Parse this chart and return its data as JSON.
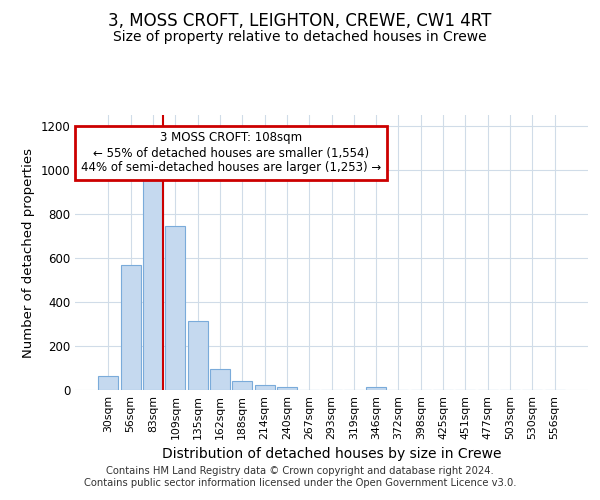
{
  "title": "3, MOSS CROFT, LEIGHTON, CREWE, CW1 4RT",
  "subtitle": "Size of property relative to detached houses in Crewe",
  "xlabel": "Distribution of detached houses by size in Crewe",
  "ylabel": "Number of detached properties",
  "categories": [
    "30sqm",
    "56sqm",
    "83sqm",
    "109sqm",
    "135sqm",
    "162sqm",
    "188sqm",
    "214sqm",
    "240sqm",
    "267sqm",
    "293sqm",
    "319sqm",
    "346sqm",
    "372sqm",
    "398sqm",
    "425sqm",
    "451sqm",
    "477sqm",
    "503sqm",
    "530sqm",
    "556sqm"
  ],
  "values": [
    65,
    570,
    1005,
    745,
    315,
    95,
    40,
    22,
    14,
    0,
    0,
    0,
    14,
    0,
    0,
    0,
    0,
    0,
    0,
    0,
    0
  ],
  "bar_color": "#c5d9ef",
  "bar_edge_color": "#7aabda",
  "highlight_line_color": "#cc0000",
  "annotation_text_line1": "3 MOSS CROFT: 108sqm",
  "annotation_text_line2": "← 55% of detached houses are smaller (1,554)",
  "annotation_text_line3": "44% of semi-detached houses are larger (1,253) →",
  "annotation_box_edgecolor": "#cc0000",
  "ylim_max": 1250,
  "yticks": [
    0,
    200,
    400,
    600,
    800,
    1000,
    1200
  ],
  "bg_color": "#ffffff",
  "grid_color": "#d0dce8",
  "footer_line1": "Contains HM Land Registry data © Crown copyright and database right 2024.",
  "footer_line2": "Contains public sector information licensed under the Open Government Licence v3.0."
}
